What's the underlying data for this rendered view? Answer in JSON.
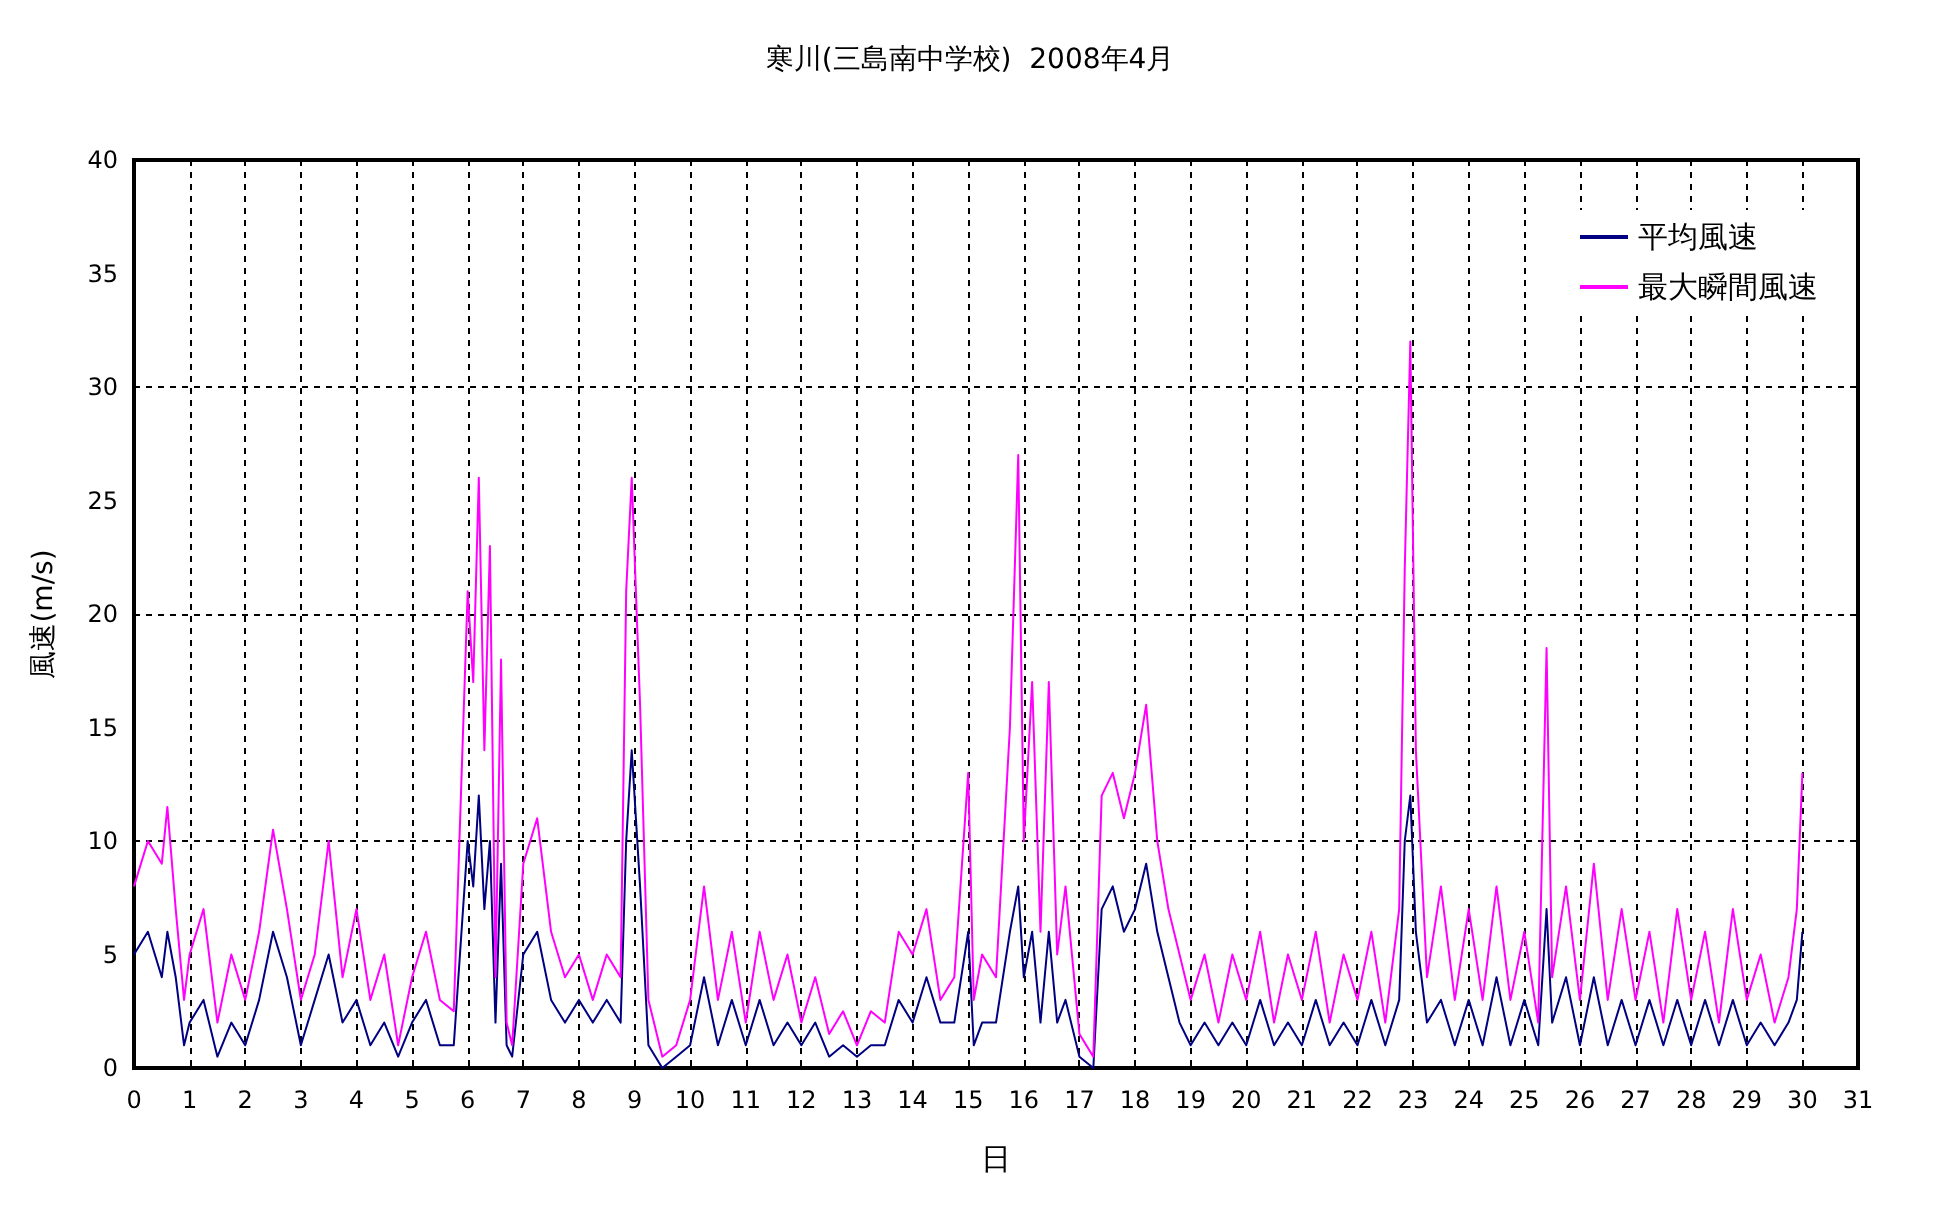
{
  "chart_data": {
    "type": "line",
    "title": "寒川(三島南中学校)  2008年4月",
    "xlabel": "日",
    "ylabel": "風速(m/s)",
    "x": [
      0,
      0.25,
      0.5,
      0.6,
      0.75,
      0.9,
      1,
      1.25,
      1.5,
      1.75,
      2,
      2.25,
      2.5,
      2.75,
      3,
      3.25,
      3.5,
      3.75,
      4,
      4.25,
      4.5,
      4.75,
      5,
      5.25,
      5.5,
      5.75,
      6,
      6.1,
      6.2,
      6.3,
      6.4,
      6.5,
      6.6,
      6.7,
      6.8,
      7,
      7.25,
      7.5,
      7.75,
      8,
      8.25,
      8.5,
      8.75,
      8.85,
      8.95,
      9.1,
      9.25,
      9.5,
      9.75,
      10,
      10.25,
      10.5,
      10.75,
      11,
      11.25,
      11.5,
      11.75,
      12,
      12.25,
      12.5,
      12.75,
      13,
      13.25,
      13.5,
      13.75,
      14,
      14.25,
      14.5,
      14.75,
      15,
      15.1,
      15.25,
      15.5,
      15.75,
      15.9,
      16,
      16.15,
      16.3,
      16.45,
      16.6,
      16.75,
      17,
      17.25,
      17.4,
      17.6,
      17.8,
      18,
      18.2,
      18.4,
      18.6,
      18.8,
      19,
      19.25,
      19.5,
      19.75,
      20,
      20.25,
      20.5,
      20.75,
      21,
      21.25,
      21.5,
      21.75,
      22,
      22.25,
      22.5,
      22.75,
      22.85,
      22.95,
      23.05,
      23.25,
      23.5,
      23.75,
      24,
      24.25,
      24.5,
      24.75,
      25,
      25.25,
      25.4,
      25.5,
      25.75,
      26,
      26.25,
      26.5,
      26.75,
      27,
      27.25,
      27.5,
      27.75,
      28,
      28.25,
      28.5,
      28.75,
      29,
      29.25,
      29.5,
      29.75,
      29.9,
      30
    ],
    "series": [
      {
        "name": "平均風速",
        "color": "#000080",
        "values": [
          5,
          6,
          4,
          6,
          4,
          1,
          2,
          3,
          0.5,
          2,
          1,
          3,
          6,
          4,
          1,
          3,
          5,
          2,
          3,
          1,
          2,
          0.5,
          2,
          3,
          1,
          1,
          10,
          8,
          12,
          7,
          10,
          2,
          9,
          1,
          0.5,
          5,
          6,
          3,
          2,
          3,
          2,
          3,
          2,
          10,
          14,
          8,
          1,
          0,
          0.5,
          1,
          4,
          1,
          3,
          1,
          3,
          1,
          2,
          1,
          2,
          0.5,
          1,
          0.5,
          1,
          1,
          3,
          2,
          4,
          2,
          2,
          6,
          1,
          2,
          2,
          6,
          8,
          4,
          6,
          2,
          6,
          2,
          3,
          0.5,
          0,
          7,
          8,
          6,
          7,
          9,
          6,
          4,
          2,
          1,
          2,
          1,
          2,
          1,
          3,
          1,
          2,
          1,
          3,
          1,
          2,
          1,
          3,
          1,
          3,
          10,
          12,
          6,
          2,
          3,
          1,
          3,
          1,
          4,
          1,
          3,
          1,
          7,
          2,
          4,
          1,
          4,
          1,
          3,
          1,
          3,
          1,
          3,
          1,
          3,
          1,
          3,
          1,
          2,
          1,
          2,
          3,
          6
        ]
      },
      {
        "name": "最大瞬間風速",
        "color": "#ff00ff",
        "values": [
          8,
          10,
          9,
          11.5,
          7,
          3,
          5,
          7,
          2,
          5,
          3,
          6,
          10.5,
          7,
          3,
          5,
          10,
          4,
          7,
          3,
          5,
          1,
          4,
          6,
          3,
          2.5,
          21,
          17,
          26,
          14,
          23,
          4,
          18,
          2,
          1,
          9,
          11,
          6,
          4,
          5,
          3,
          5,
          4,
          21,
          26,
          16,
          3,
          0.5,
          1,
          3,
          8,
          3,
          6,
          2,
          6,
          3,
          5,
          2,
          4,
          1.5,
          2.5,
          1,
          2.5,
          2,
          6,
          5,
          7,
          3,
          4,
          13,
          3,
          5,
          4,
          15,
          27,
          10,
          17,
          6,
          17,
          5,
          8,
          1.5,
          0.5,
          12,
          13,
          11,
          13,
          16,
          10,
          7,
          5,
          3,
          5,
          2,
          5,
          3,
          6,
          2,
          5,
          3,
          6,
          2,
          5,
          3,
          6,
          2,
          7,
          22,
          32,
          14,
          4,
          8,
          3,
          7,
          3,
          8,
          3,
          6,
          2,
          18.5,
          4,
          8,
          3,
          9,
          3,
          7,
          3,
          6,
          2,
          7,
          3,
          6,
          2,
          7,
          3,
          5,
          2,
          4,
          7,
          13
        ]
      }
    ],
    "xlim": [
      0,
      31
    ],
    "xticks": [
      0,
      1,
      2,
      3,
      4,
      5,
      6,
      7,
      8,
      9,
      10,
      11,
      12,
      13,
      14,
      15,
      16,
      17,
      18,
      19,
      20,
      21,
      22,
      23,
      24,
      25,
      26,
      27,
      28,
      29,
      30,
      31
    ],
    "ylim": [
      0,
      40
    ],
    "yticks": [
      0,
      5,
      10,
      15,
      20,
      25,
      30,
      35,
      40
    ],
    "grid": true,
    "legend": "top right",
    "marker": "none",
    "line_style": "solid"
  }
}
